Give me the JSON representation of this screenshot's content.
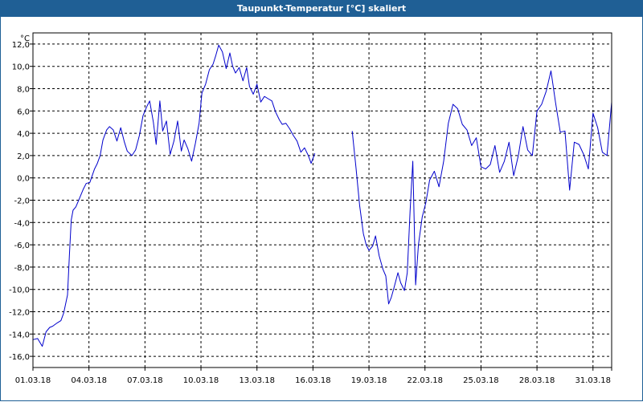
{
  "window": {
    "title": "Taupunkt-Temperatur [°C] skaliert"
  },
  "chart_data": {
    "type": "line",
    "title": "Taupunkt-Temperatur [°C] skaliert",
    "y_unit": "°C",
    "xlabel": "",
    "ylabel": "",
    "ylim": [
      -17.0,
      13.0
    ],
    "xlim": [
      0,
      31
    ],
    "grid": true,
    "legend": "none",
    "line_color": "#0000cc",
    "x_tick_labels": [
      "01.03.18",
      "04.03.18",
      "07.03.18",
      "10.03.18",
      "13.03.18",
      "16.03.18",
      "19.03.18",
      "22.03.18",
      "25.03.18",
      "28.03.18",
      "31.03.18"
    ],
    "x_tick_positions_days": [
      0,
      3,
      6,
      9,
      12,
      15,
      18,
      21,
      24,
      27,
      30
    ],
    "y_tick_labels": [
      "12,0",
      "10,0",
      "8,0",
      "6,0",
      "4,0",
      "2,0",
      "0,0",
      "-2,0",
      "-4,0",
      "-6,0",
      "-8,0",
      "-10,0",
      "-12,0",
      "-14,0",
      "-16,0"
    ],
    "y_tick_values": [
      12,
      10,
      8,
      6,
      4,
      2,
      0,
      -2,
      -4,
      -6,
      -8,
      -10,
      -12,
      -14,
      -16
    ],
    "series": [
      {
        "segments": [
          {
            "x": [
              0.0,
              0.25,
              0.5,
              0.7,
              0.9,
              1.05,
              1.3,
              1.5,
              1.65,
              1.85,
              1.95,
              2.05,
              2.15,
              2.3,
              2.5,
              2.7,
              2.85,
              3.05,
              3.3,
              3.45,
              3.6,
              3.75,
              3.95,
              4.1,
              4.3,
              4.5,
              4.7,
              4.9,
              5.05,
              5.3,
              5.5,
              5.7,
              5.9,
              6.1,
              6.25,
              6.45,
              6.6,
              6.8,
              6.95,
              7.15,
              7.35,
              7.55,
              7.75,
              7.95,
              8.1,
              8.3,
              8.5,
              8.7,
              8.9,
              9.05,
              9.25,
              9.45,
              9.65,
              9.8,
              9.95,
              10.15,
              10.35,
              10.55,
              10.7,
              10.85,
              11.05,
              11.25,
              11.45,
              11.6,
              11.8,
              12.0,
              12.2,
              12.4,
              12.6,
              12.8,
              13.0,
              13.2,
              13.35,
              13.55,
              13.75,
              13.95,
              14.15,
              14.35,
              14.55,
              14.75,
              14.9,
              15.1
            ],
            "y": [
              -14.5,
              -14.4,
              -15.1,
              -13.8,
              -13.4,
              -13.3,
              -13.0,
              -12.8,
              -12.1,
              -10.5,
              -7.0,
              -3.8,
              -2.9,
              -2.6,
              -1.8,
              -1.0,
              -0.5,
              -0.4,
              0.8,
              1.3,
              2.0,
              3.4,
              4.3,
              4.6,
              4.3,
              3.3,
              4.5,
              3.2,
              2.4,
              2.0,
              2.5,
              3.8,
              5.6,
              6.4,
              6.9,
              5.0,
              3.0,
              6.9,
              4.2,
              5.1,
              2.1,
              3.3,
              5.1,
              2.4,
              3.4,
              2.6,
              1.5,
              3.1,
              4.9,
              7.6,
              8.4,
              9.7,
              10.2,
              11.0,
              11.9,
              11.3,
              9.8,
              11.2,
              10.0,
              9.4,
              9.9,
              8.7,
              9.9,
              8.2,
              7.5,
              8.4,
              6.8,
              7.3,
              7.1,
              6.9,
              5.9,
              5.2,
              4.8,
              4.9,
              4.4,
              3.8,
              3.3,
              2.3,
              2.7,
              2.0,
              1.3,
              2.2
            ]
          },
          {
            "x": [
              17.1,
              17.3,
              17.5,
              17.7,
              17.85,
              18.0,
              18.2,
              18.35,
              18.55,
              18.75,
              18.9,
              19.05,
              19.2,
              19.35,
              19.55,
              19.7,
              19.9,
              20.05,
              20.2,
              20.35,
              20.5,
              20.65,
              20.85,
              21.05,
              21.25,
              21.5,
              21.75,
              22.0,
              22.25,
              22.5,
              22.75,
              23.0,
              23.25,
              23.5,
              23.75,
              24.0,
              24.25,
              24.5,
              24.75,
              25.0,
              25.25,
              25.5,
              25.75,
              26.0,
              26.25,
              26.5,
              26.75,
              27.0,
              27.25,
              27.5,
              27.75,
              28.0,
              28.25,
              28.5,
              28.75,
              29.0,
              29.25,
              29.5,
              29.75,
              30.0,
              30.25,
              30.5,
              30.75,
              31.0
            ],
            "y": [
              4.2,
              1.0,
              -2.5,
              -5.0,
              -6.0,
              -6.5,
              -6.1,
              -5.2,
              -7.0,
              -8.2,
              -8.8,
              -11.3,
              -10.7,
              -9.8,
              -8.5,
              -9.4,
              -10.1,
              -8.5,
              -3.0,
              1.5,
              -9.6,
              -6.0,
              -3.5,
              -2.2,
              -0.2,
              0.6,
              -0.8,
              1.5,
              4.9,
              6.6,
              6.2,
              4.8,
              4.3,
              2.9,
              3.6,
              1.0,
              0.8,
              1.2,
              2.9,
              0.5,
              1.5,
              3.2,
              0.2,
              2.0,
              4.6,
              2.5,
              2.0,
              6.0,
              6.6,
              7.8,
              9.6,
              6.7,
              4.1,
              4.2,
              -1.1,
              3.2,
              3.0,
              2.1,
              0.8,
              5.8,
              4.5,
              2.3,
              2.0,
              6.8
            ]
          }
        ]
      }
    ]
  }
}
